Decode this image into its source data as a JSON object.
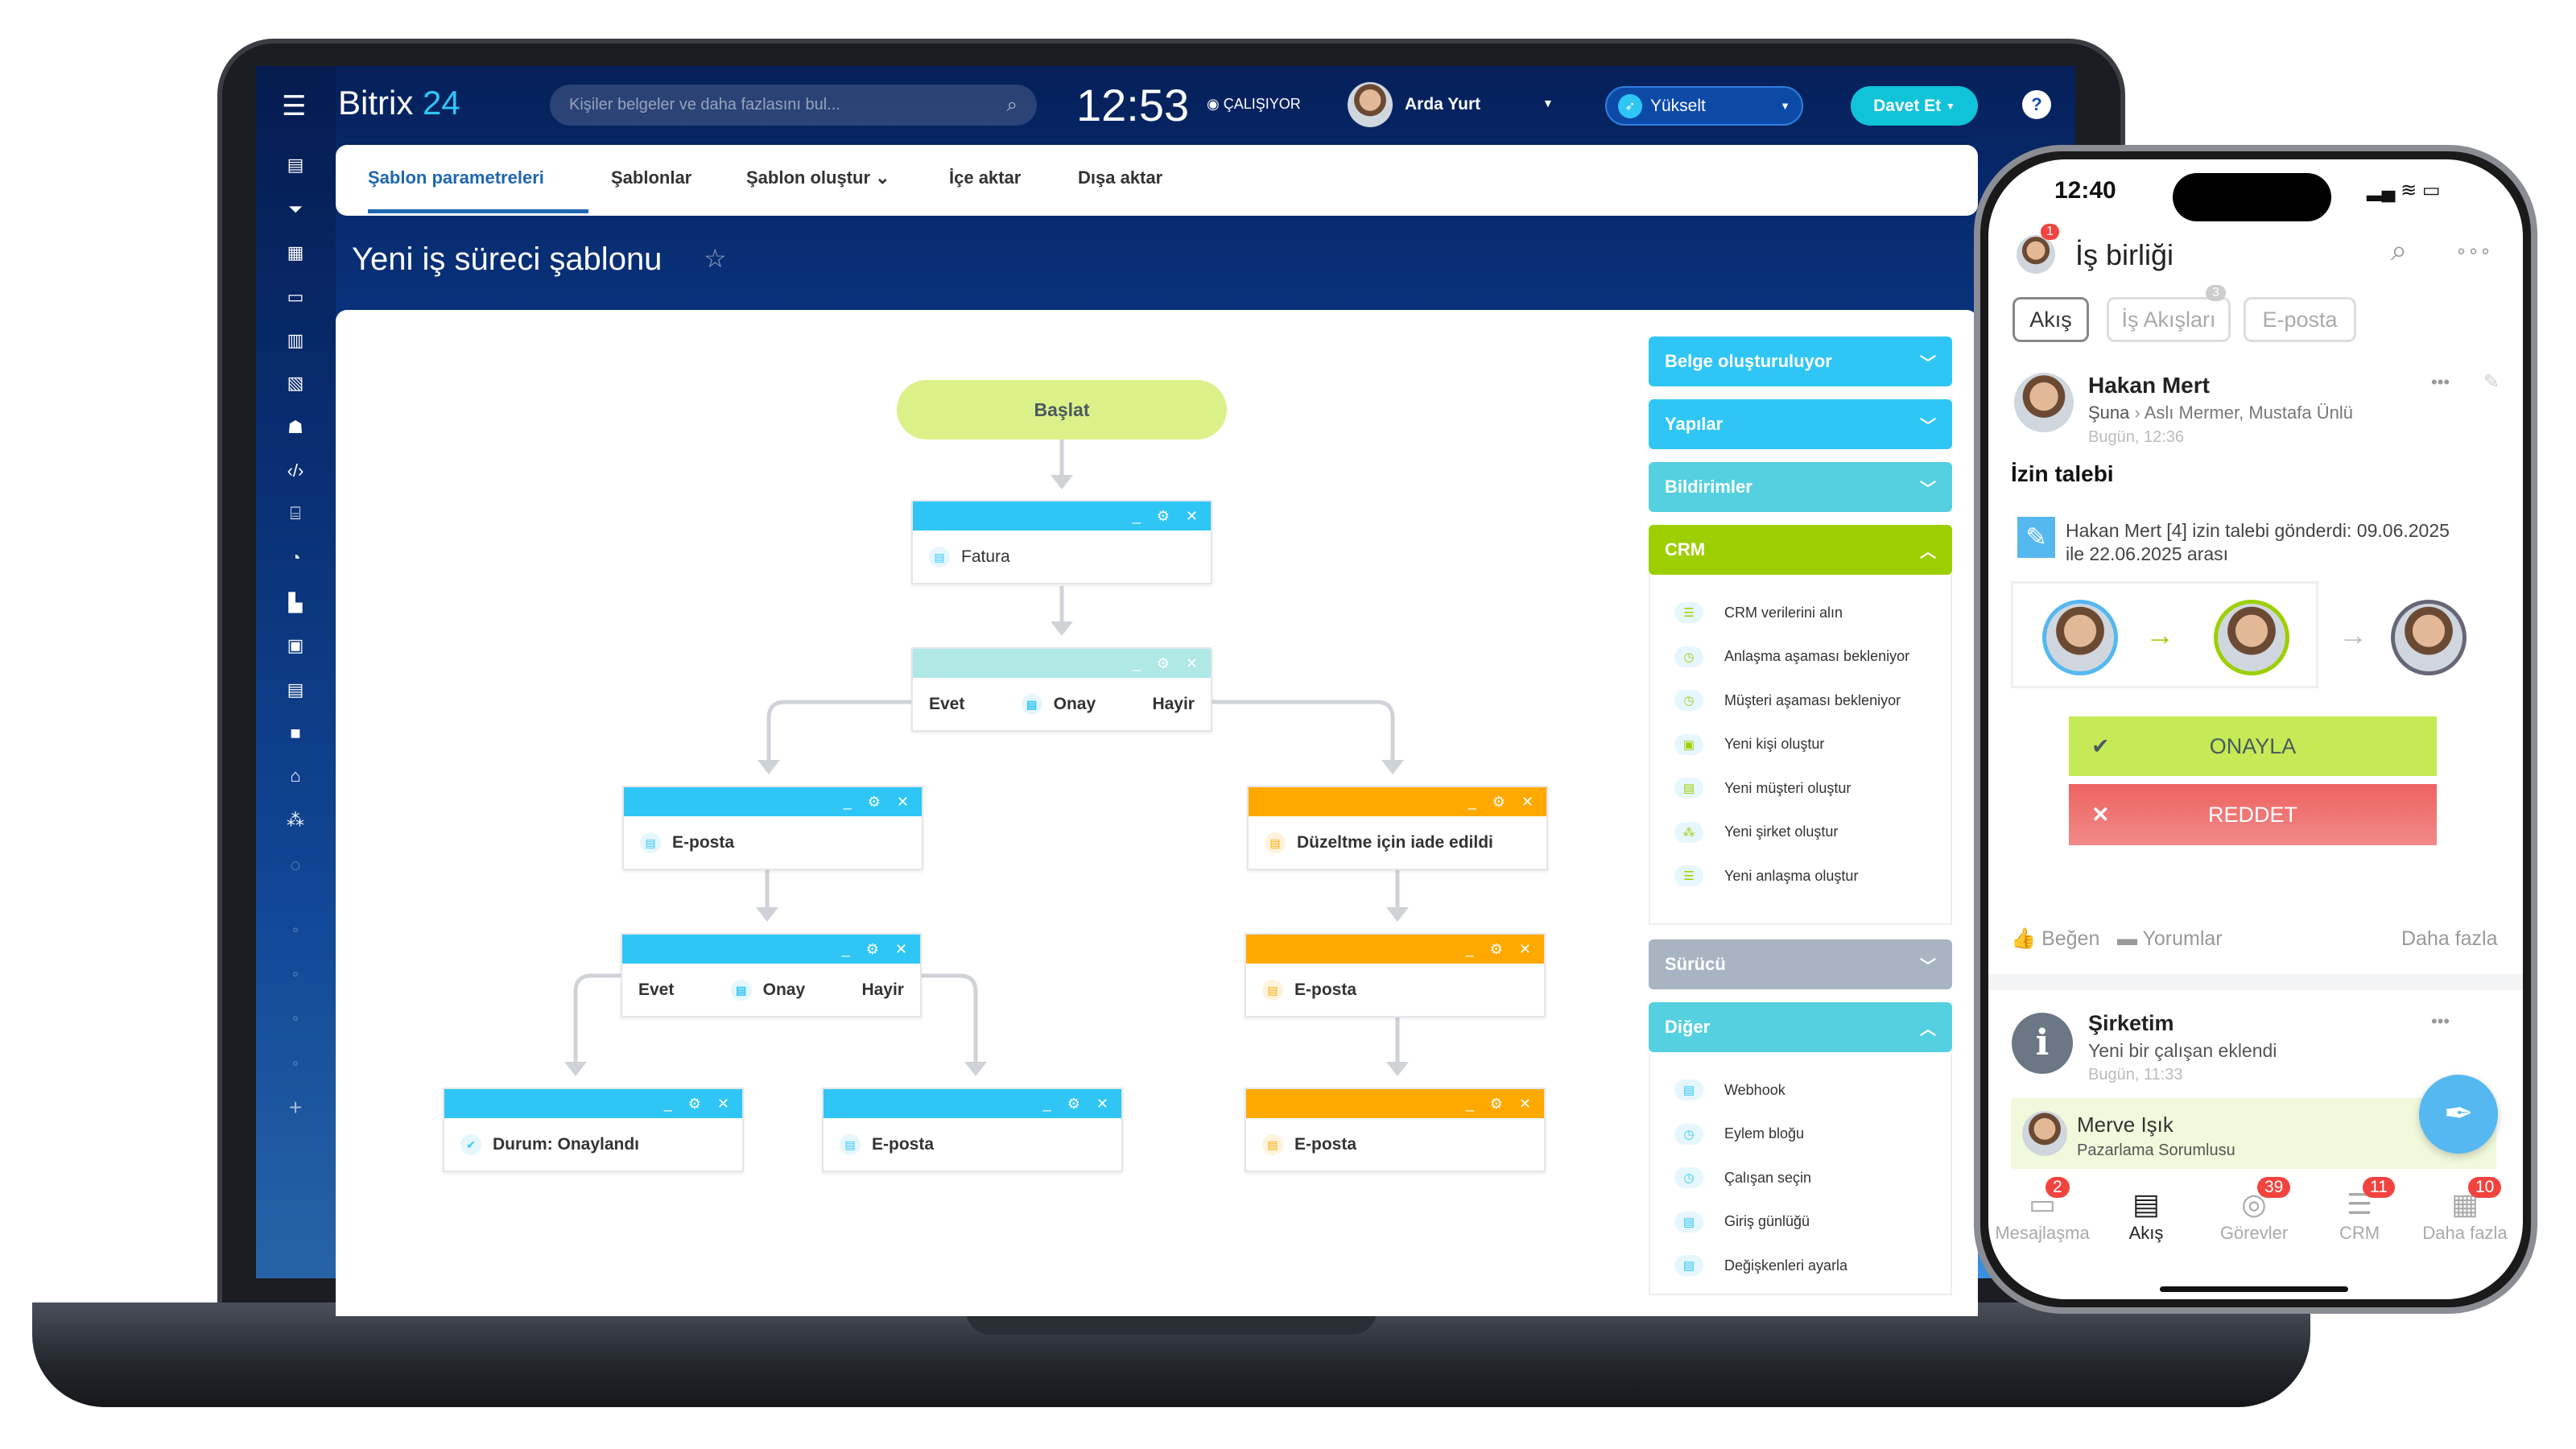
{
  "header": {
    "logo_text": "Bitrix",
    "logo_num": "24",
    "search_placeholder": "Kişiler belgeler ve daha fazlasını bul...",
    "clock": "12:53",
    "status": "ÇALIŞIYOR",
    "user": "Arda Yurt",
    "upgrade": "Yükselt",
    "invite": "Davet Et",
    "help": "?"
  },
  "tabs": [
    {
      "label": "Şablon parametreleri",
      "active": true
    },
    {
      "label": "Şablonlar"
    },
    {
      "label": "Şablon oluştur ⌄"
    },
    {
      "label": "İçe aktar"
    },
    {
      "label": "Dışa aktar"
    }
  ],
  "page_title": "Yeni iş süreci şablonu",
  "workflow": {
    "start": "Başlat",
    "nodes": [
      {
        "label": "Fatura",
        "color": "blue"
      },
      {
        "label": "Onay",
        "color": "teal",
        "yes": "Evet",
        "no": "Hayir"
      },
      {
        "label": "E-posta",
        "color": "blue"
      },
      {
        "label": "Onay",
        "color": "blue",
        "yes": "Evet",
        "no": "Hayir"
      },
      {
        "label": "Durum: Onaylandı",
        "color": "blue"
      },
      {
        "label": "E-posta",
        "color": "blue"
      },
      {
        "label": "Düzeltme için iade edildi",
        "color": "orange"
      },
      {
        "label": "E-posta",
        "color": "orange"
      },
      {
        "label": "E-posta",
        "color": "orange"
      }
    ]
  },
  "panel": {
    "sections": [
      {
        "label": "Belge oluşturuluyor",
        "color": "#2fc6f6"
      },
      {
        "label": "Yapılar",
        "color": "#2fc6f6"
      },
      {
        "label": "Bildirimler",
        "color": "#55d0e0"
      },
      {
        "label": "CRM",
        "color": "#9dcf00"
      },
      {
        "label": "Sürücü",
        "color": "#a8b4c2"
      },
      {
        "label": "Diğer",
        "color": "#55d0e0"
      }
    ],
    "crm_items": [
      "CRM verilerini alın",
      "Anlaşma aşaması bekleniyor",
      "Müşteri aşaması bekleniyor",
      "Yeni kişi oluştur",
      "Yeni müşteri  oluştur",
      "Yeni şirket oluştur",
      "Yeni anlaşma oluştur"
    ],
    "other_items": [
      "Webhook",
      "Eylem bloğu",
      "Çalışan seçin",
      "Giriş günlüğü",
      "Değişkenleri ayarla"
    ]
  },
  "phone": {
    "time": "12:40",
    "title": "İş birliği",
    "avatar_badge": "1",
    "tabs": [
      "Akış",
      "İş Akışları",
      "E-posta"
    ],
    "tab_badge": "3",
    "post": {
      "author": "Hakan Mert",
      "to_from": "Şuna",
      "recipients": "Aslı Mermer, Mustafa Ünlü",
      "time": "Bugün, 12:36",
      "heading": "İzin talebi",
      "text1": "Hakan Mert [4] izin talebi gönderdi: 09.06.2025",
      "text2": "ile 22.06.2025 arası",
      "approve": "ONAYLA",
      "reject": "REDDET"
    },
    "actions": {
      "like": "Beğen",
      "comments": "Yorumlar",
      "more": "Daha fazla"
    },
    "post2": {
      "author": "Şirketim",
      "text": "Yeni bir çalışan eklendi",
      "time": "Bugün, 11:33",
      "person": "Merve Işık",
      "role": "Pazarlama Sorumlusu"
    },
    "nav": [
      {
        "label": "Mesajlaşma",
        "badge": "2"
      },
      {
        "label": "Akış",
        "badge": ""
      },
      {
        "label": "Görevler",
        "badge": "39"
      },
      {
        "label": "CRM",
        "badge": "11"
      },
      {
        "label": "Daha fazla",
        "badge": "10"
      }
    ]
  },
  "colors": {
    "blue": "#2fc6f6",
    "teal": "#b0e8e6",
    "orange": "#ffa900",
    "approve": "#c4ea55",
    "reject": "#ee6260",
    "accent": "#2066b0"
  }
}
